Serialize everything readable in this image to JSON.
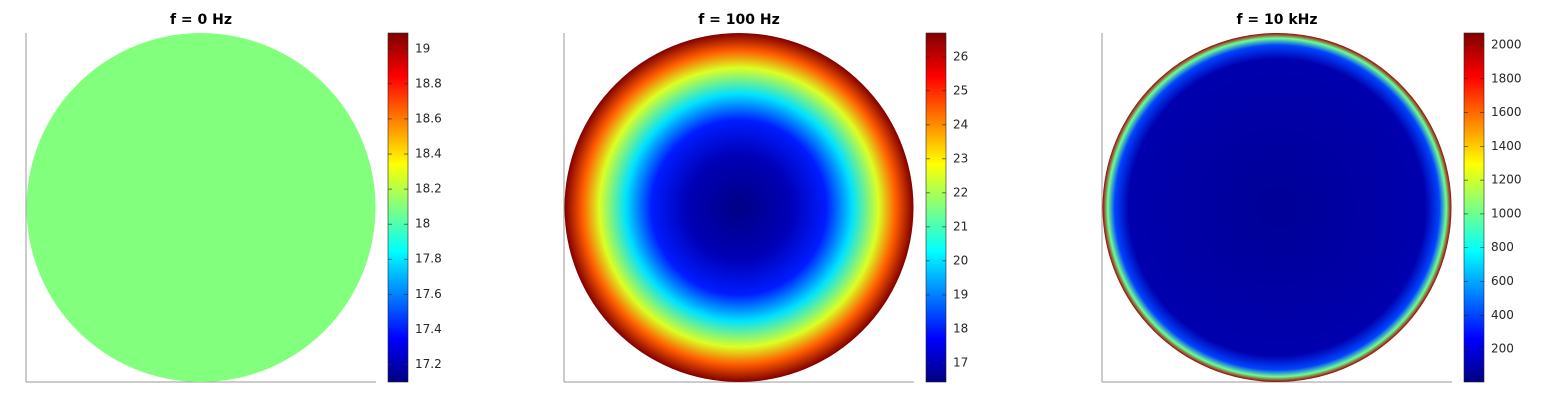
{
  "chart_data": [
    {
      "type": "radial-heatmap",
      "title": "f = 0 Hz",
      "colormap": "jet",
      "r": [
        0,
        1
      ],
      "values": [
        18.1,
        18.1
      ],
      "ylim": [
        17.1,
        19.09
      ],
      "yticks": [
        17.2,
        17.4,
        17.6,
        17.8,
        18,
        18.2,
        18.4,
        18.6,
        18.8,
        19
      ]
    },
    {
      "type": "radial-heatmap",
      "title": "f = 100 Hz",
      "colormap": "jet",
      "r": [
        0,
        0.3,
        0.5,
        0.65,
        0.8,
        0.9,
        1
      ],
      "values": [
        16.5,
        17,
        18,
        20,
        22.5,
        24.5,
        26.7
      ],
      "ylim": [
        16.44,
        26.7
      ],
      "yticks": [
        17,
        18,
        19,
        20,
        21,
        22,
        23,
        24,
        25,
        26
      ]
    },
    {
      "type": "radial-heatmap",
      "title": "f = 10 kHz",
      "colormap": "jet",
      "r": [
        0,
        0.85,
        0.93,
        0.97,
        1
      ],
      "values": [
        50,
        100,
        400,
        1000,
        2000
      ],
      "ylim": [
        5,
        2071
      ],
      "yticks": [
        200,
        400,
        600,
        800,
        1000,
        1200,
        1400,
        1600,
        1800,
        2000
      ]
    }
  ]
}
